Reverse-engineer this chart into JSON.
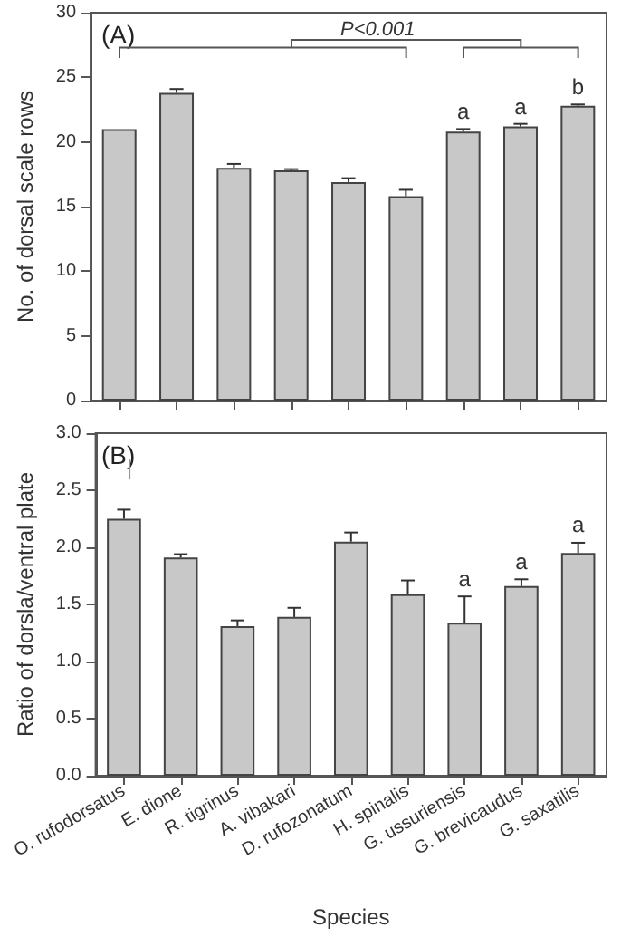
{
  "chart_data": [
    {
      "type": "bar",
      "ylabel": "No. of dorsal scale rows",
      "categories": [
        "O. rufodorsatus",
        "E. dione",
        "R. tigrinus",
        "A. vibakari",
        "D. rufozonatum",
        "H. spinalis",
        "G. ussuriensis",
        "G. brevicaudus",
        "G. saxatilis"
      ],
      "values": [
        21.0,
        23.8,
        18.0,
        17.8,
        16.9,
        15.8,
        20.8,
        21.2,
        22.8
      ],
      "errors": [
        null,
        0.3,
        0.3,
        0.1,
        0.3,
        0.5,
        0.2,
        0.2,
        0.1
      ],
      "color": "#c8c8c8",
      "ylim": [
        0,
        30
      ],
      "yticks": [
        0,
        5,
        10,
        15,
        20,
        25,
        30
      ],
      "grid": false,
      "tick_labels": "y",
      "annotations": [
        "(A)",
        "P<0.001",
        {
          "text": "a",
          "x": "G. ussuriensis",
          "y": 21.5
        },
        {
          "text": "a",
          "x": "G. brevicaudus",
          "y": 21.9
        },
        {
          "text": "b",
          "x": "G. saxatilis",
          "y": 23.4
        }
      ]
    },
    {
      "type": "bar",
      "xlabel": "Species",
      "ylabel": "Ratio of dorsla/ventral plate",
      "categories": [
        "O. rufodorsatus",
        "E. dione",
        "R. tigrinus",
        "A. vibakari",
        "D. rufozonatum",
        "H. spinalis",
        "G. ussuriensis",
        "G. brevicaudus",
        "G. saxatilis"
      ],
      "values": [
        2.25,
        1.91,
        1.31,
        1.39,
        2.05,
        1.59,
        1.34,
        1.66,
        1.95
      ],
      "errors": [
        0.08,
        0.03,
        0.05,
        0.08,
        0.08,
        0.12,
        0.23,
        0.06,
        0.09
      ],
      "color": "#c8c8c8",
      "ylim": [
        0,
        3.0
      ],
      "yticks": [
        {
          "value": 0,
          "label": "0.0"
        },
        {
          "value": 0.5,
          "label": "0.5"
        },
        {
          "value": 1,
          "label": "1.0"
        },
        {
          "value": 1.5,
          "label": "1.5"
        },
        {
          "value": 2,
          "label": "2.0"
        },
        {
          "value": 2.5,
          "label": "2.5"
        },
        {
          "value": 3,
          "label": "3.0"
        }
      ],
      "grid": false,
      "annotations": [
        "(B)",
        "|",
        {
          "text": "a",
          "x": "G. ussuriensis",
          "y": 1.63
        },
        {
          "text": "a",
          "x": "G. brevicaudus",
          "y": 1.78
        },
        {
          "text": "a",
          "x": "G. saxatilis",
          "y": 2.1
        }
      ]
    }
  ]
}
